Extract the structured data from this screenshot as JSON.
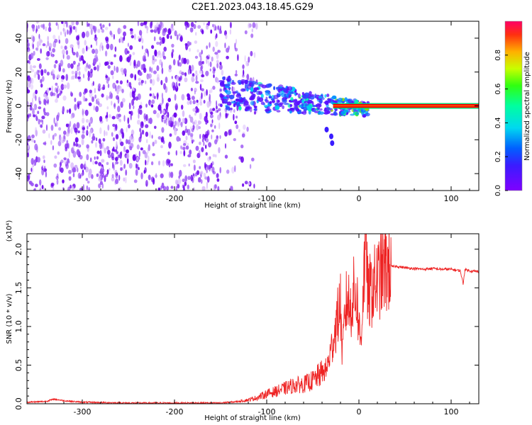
{
  "title": "C2E1.2023.043.18.45.G29",
  "colors": {
    "snr_line": "#ee2222",
    "spectrum_low": "#7f00ff",
    "carrier_core": "#ff0000",
    "carrier_edge": "#00ff00"
  },
  "chart_data": [
    {
      "type": "heatmap",
      "title": "C2E1.2023.043.18.45.G29",
      "xlabel": "Height of straight line (km)",
      "ylabel": "Frequency (Hz)",
      "xlim": [
        -360,
        130
      ],
      "ylim": [
        -50,
        50
      ],
      "xticks": [
        -300,
        -200,
        -100,
        0,
        100
      ],
      "yticks": [
        -40,
        -20,
        0,
        20,
        40
      ],
      "colorbar": {
        "label": "Normalized spectral amplitude",
        "range": [
          0.0,
          1.0
        ],
        "ticks": [
          "0.0",
          "0.2",
          "0.4",
          "0.6",
          "0.8"
        ],
        "colormap": "rainbow (purple to red)"
      },
      "features": {
        "noise_region_x": [
          -360,
          -150
        ],
        "scintillation_region_x": [
          -150,
          10
        ],
        "carrier_line": {
          "x_start": -28,
          "x_end": 130,
          "frequency_hz": 0
        }
      },
      "grid": false
    },
    {
      "type": "line",
      "xlabel": "Height of straight line (km)",
      "ylabel": "SNR (10 * v/v)",
      "y_multiplier": "(x10⁴)",
      "xlim": [
        -360,
        130
      ],
      "ylim": [
        0,
        2.2
      ],
      "xticks": [
        -300,
        -200,
        -100,
        0,
        100
      ],
      "yticks": [
        "0.0",
        "0.5",
        "1.0",
        "1.5",
        "2.0"
      ],
      "series": [
        {
          "x": [
            -360,
            -340,
            -330,
            -320,
            -300,
            -250,
            -200,
            -150,
            -130,
            -120,
            -110,
            -100,
            -90,
            -80,
            -70,
            -60,
            -50,
            -40,
            -35,
            -30,
            -25,
            -20,
            -18,
            -15,
            -12,
            -10,
            -8,
            -5,
            -2,
            0,
            2,
            5,
            8,
            10,
            12,
            15,
            20,
            25,
            30,
            40,
            50,
            60,
            70,
            80,
            90,
            100,
            110,
            113,
            115,
            120,
            130
          ],
          "values": [
            0.02,
            0.03,
            0.06,
            0.04,
            0.02,
            0.01,
            0.01,
            0.01,
            0.03,
            0.05,
            0.08,
            0.13,
            0.16,
            0.2,
            0.24,
            0.25,
            0.3,
            0.4,
            0.45,
            0.7,
            1.0,
            1.3,
            0.6,
            1.2,
            1.4,
            1.2,
            1.3,
            1.45,
            1.35,
            1.0,
            0.8,
            1.6,
            2.18,
            1.3,
            1.45,
            1.5,
            1.6,
            1.7,
            1.76,
            1.78,
            1.76,
            1.75,
            1.74,
            1.75,
            1.74,
            1.74,
            1.72,
            1.55,
            1.74,
            1.72,
            1.71
          ]
        }
      ],
      "grid": false
    }
  ]
}
